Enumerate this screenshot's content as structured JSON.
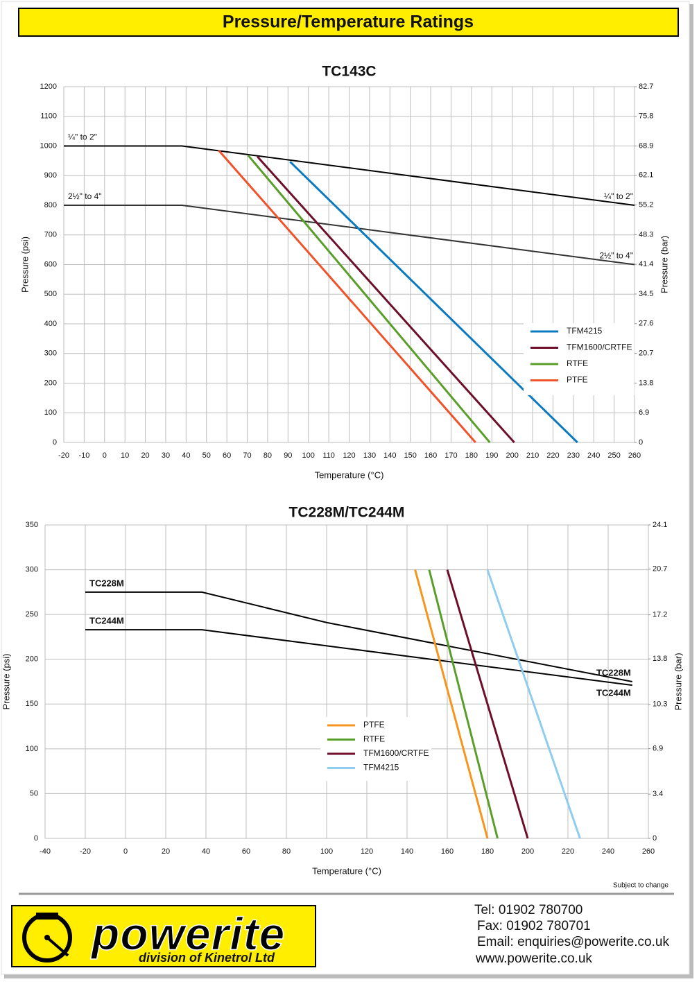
{
  "header": {
    "title": "Pressure/Temperature Ratings"
  },
  "chart_data": [
    {
      "type": "line",
      "title": "TC143C",
      "x_label": "Temperature (°C)",
      "y_label": "Pressure (psi)",
      "y2_label": "Pressure (bar)",
      "xlim": [
        -20,
        260
      ],
      "xticks": [
        -20,
        -10,
        0,
        10,
        20,
        30,
        40,
        50,
        60,
        70,
        80,
        90,
        100,
        110,
        120,
        130,
        140,
        150,
        160,
        170,
        180,
        190,
        200,
        210,
        220,
        230,
        240,
        250,
        260
      ],
      "ylim": [
        0,
        1200
      ],
      "yticks": [
        0,
        100,
        200,
        300,
        400,
        500,
        600,
        700,
        800,
        900,
        1000,
        1100,
        1200
      ],
      "y2lim": [
        0,
        82.7
      ],
      "y2ticks": [
        0,
        6.9,
        13.8,
        20.7,
        27.6,
        34.5,
        41.4,
        48.3,
        55.2,
        62.1,
        68.9,
        75.8,
        82.7
      ],
      "grid": true,
      "legend": "lower right",
      "rating_lines": [
        {
          "label": "¼\" to 2\"",
          "color": "#000000",
          "x": [
            -20,
            38,
            260
          ],
          "values": [
            1000,
            1000,
            800
          ]
        },
        {
          "label": "2½\" to 4\"",
          "color": "#333333",
          "x": [
            -20,
            38,
            260
          ],
          "values": [
            800,
            800,
            600
          ]
        }
      ],
      "series": [
        {
          "name": "TFM4215",
          "color": "#0a7ac0",
          "x": [
            91,
            232
          ],
          "values": [
            947,
            0
          ]
        },
        {
          "name": "TFM1600/CRTFE",
          "color": "#6d0f2b",
          "x": [
            75,
            201
          ],
          "values": [
            964,
            0
          ]
        },
        {
          "name": "RTFE",
          "color": "#5a9e2a",
          "x": [
            70.5,
            189
          ],
          "values": [
            968,
            0
          ]
        },
        {
          "name": "PTFE",
          "color": "#f0522a",
          "x": [
            56,
            182
          ],
          "values": [
            985,
            0
          ]
        }
      ]
    },
    {
      "type": "line",
      "title": "TC228M/TC244M",
      "x_label": "Temperature (°C)",
      "y_label": "Pressure (psi)",
      "y2_label": "Pressure (bar)",
      "xlim": [
        -40,
        260
      ],
      "xticks": [
        -40,
        -20,
        0,
        20,
        40,
        60,
        80,
        100,
        120,
        140,
        160,
        180,
        200,
        220,
        240,
        260
      ],
      "ylim": [
        0,
        350
      ],
      "yticks": [
        0,
        50,
        100,
        150,
        200,
        250,
        300,
        350
      ],
      "y2lim": [
        0,
        24.1
      ],
      "y2ticks": [
        0,
        3.4,
        6.9,
        10.3,
        13.8,
        17.2,
        20.7,
        24.1
      ],
      "grid": true,
      "legend": "lower center",
      "rating_lines": [
        {
          "label": "TC228M",
          "color": "#000000",
          "x": [
            -20,
            38,
            100,
            252
          ],
          "values": [
            275,
            275,
            241,
            175
          ]
        },
        {
          "label": "TC244M",
          "color": "#000000",
          "x": [
            -20,
            38,
            252
          ],
          "values": [
            233,
            233,
            171
          ]
        }
      ],
      "series": [
        {
          "name": "PTFE",
          "color": "#f7941d",
          "x": [
            144,
            180
          ],
          "values": [
            300,
            0
          ]
        },
        {
          "name": "RTFE",
          "color": "#5a9e2a",
          "x": [
            151,
            185
          ],
          "values": [
            300,
            0
          ]
        },
        {
          "name": "TFM1600/CRTFE",
          "color": "#6d0f2b",
          "x": [
            160,
            200
          ],
          "values": [
            300,
            0
          ]
        },
        {
          "name": "TFM4215",
          "color": "#8ecdf0",
          "x": [
            180,
            226
          ],
          "values": [
            300,
            0
          ]
        }
      ]
    }
  ],
  "footer": {
    "note": "Subject to change",
    "brand": "powerite",
    "tagline": "division of Kinetrol Ltd",
    "tel": "Tel: 01902 780700",
    "fax": "Fax: 01902 780701",
    "email": "Email: enquiries@powerite.co.uk",
    "web": "www.powerite.co.uk"
  }
}
